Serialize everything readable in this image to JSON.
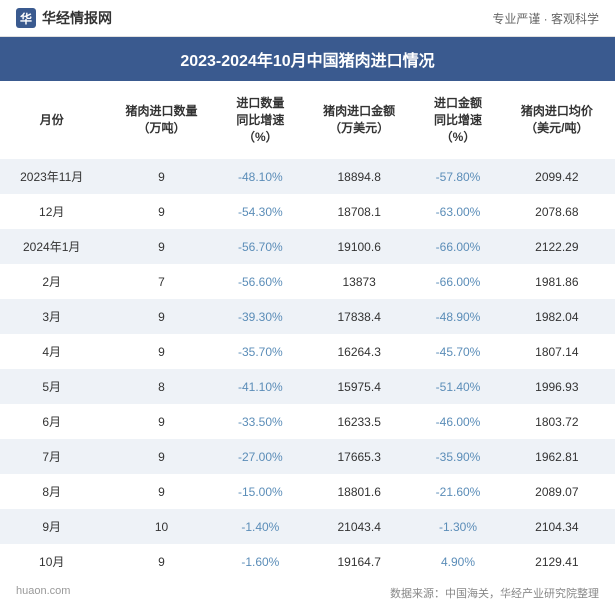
{
  "header": {
    "logo_glyph": "华",
    "logo_text": "华经情报网",
    "tagline": "专业严谨 · 客观科学"
  },
  "title": "2023-2024年10月中国猪肉进口情况",
  "table": {
    "columns": [
      "月份",
      "猪肉进口数量\n（万吨）",
      "进口数量\n同比增速\n（%）",
      "猪肉进口金额\n（万美元）",
      "进口金额\n同比增速\n（%）",
      "猪肉进口均价\n（美元/吨）"
    ],
    "rows": [
      {
        "month": "2023年11月",
        "qty": "9",
        "qty_growth": "-48.10%",
        "amount": "18894.8",
        "amt_growth": "-57.80%",
        "price": "2099.42"
      },
      {
        "month": "12月",
        "qty": "9",
        "qty_growth": "-54.30%",
        "amount": "18708.1",
        "amt_growth": "-63.00%",
        "price": "2078.68"
      },
      {
        "month": "2024年1月",
        "qty": "9",
        "qty_growth": "-56.70%",
        "amount": "19100.6",
        "amt_growth": "-66.00%",
        "price": "2122.29"
      },
      {
        "month": "2月",
        "qty": "7",
        "qty_growth": "-56.60%",
        "amount": "13873",
        "amt_growth": "-66.00%",
        "price": "1981.86"
      },
      {
        "month": "3月",
        "qty": "9",
        "qty_growth": "-39.30%",
        "amount": "17838.4",
        "amt_growth": "-48.90%",
        "price": "1982.04"
      },
      {
        "month": "4月",
        "qty": "9",
        "qty_growth": "-35.70%",
        "amount": "16264.3",
        "amt_growth": "-45.70%",
        "price": "1807.14"
      },
      {
        "month": "5月",
        "qty": "8",
        "qty_growth": "-41.10%",
        "amount": "15975.4",
        "amt_growth": "-51.40%",
        "price": "1996.93"
      },
      {
        "month": "6月",
        "qty": "9",
        "qty_growth": "-33.50%",
        "amount": "16233.5",
        "amt_growth": "-46.00%",
        "price": "1803.72"
      },
      {
        "month": "7月",
        "qty": "9",
        "qty_growth": "-27.00%",
        "amount": "17665.3",
        "amt_growth": "-35.90%",
        "price": "1962.81"
      },
      {
        "month": "8月",
        "qty": "9",
        "qty_growth": "-15.00%",
        "amount": "18801.6",
        "amt_growth": "-21.60%",
        "price": "2089.07"
      },
      {
        "month": "9月",
        "qty": "10",
        "qty_growth": "-1.40%",
        "amount": "21043.4",
        "amt_growth": "-1.30%",
        "price": "2104.34"
      },
      {
        "month": "10月",
        "qty": "9",
        "qty_growth": "-1.60%",
        "amount": "19164.7",
        "amt_growth": "4.90%",
        "price": "2129.41"
      }
    ]
  },
  "footer": {
    "site": "huaon.com",
    "source": "数据来源：中国海关，华经产业研究院整理"
  },
  "colors": {
    "header_bg": "#3a5a8f",
    "row_odd": "#eef2f7",
    "row_even": "#ffffff",
    "growth_text": "#5b8db8",
    "text": "#333333",
    "muted": "#888888"
  },
  "watermark": {
    "text1": "华经情报网",
    "text2": "华经产业研究院"
  }
}
